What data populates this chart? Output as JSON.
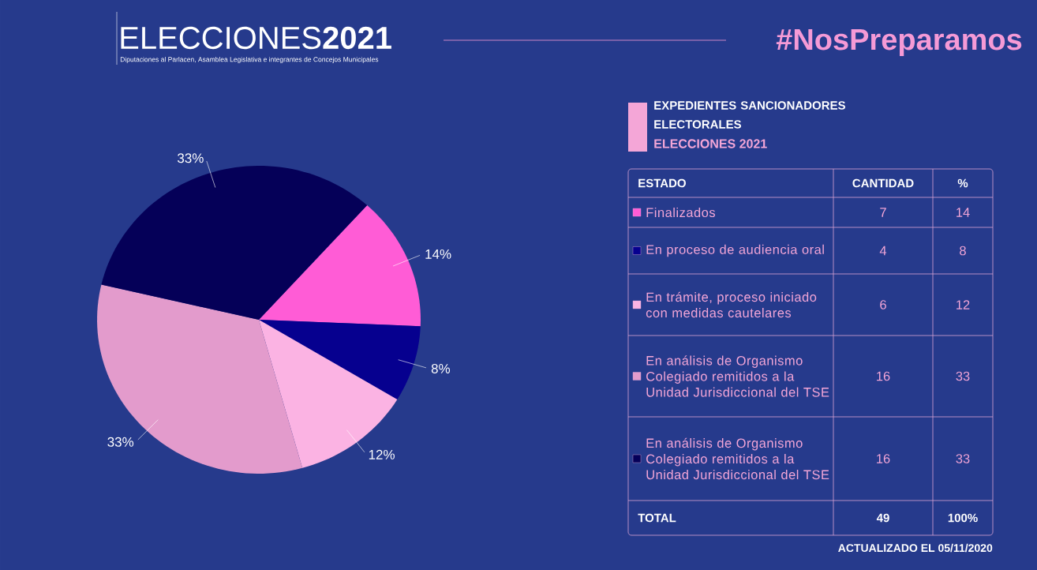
{
  "chart_data": {
    "type": "pie",
    "title": "ELECCIONES**2021**",
    "subtitle": "Diputaciones al Parlacen, Asamblea Legislativa e integrantes de Concejos Municipales",
    "categories": [
      "Finalizados",
      "En proceso de audiencia oral",
      "En trámite, proceso iniciado con medidas cautelares",
      "En análisis de Organismo Colegiado remitidos a la Unidad Jurisdiccional del TSE",
      "En análisis de Organismo Colegiado remitidos a la Unidad Jurisdiccional del TSE"
    ],
    "values": [
      14,
      8,
      12,
      33,
      33
    ],
    "colors": [
      "#ff5cd6",
      "#06008f",
      "#fbb3e3",
      "#e39bcc",
      "#050058"
    ],
    "value_labels": [
      "14%",
      "8%",
      "12%",
      "33%",
      "33%"
    ],
    "legend": "right",
    "annotations": [
      "EXPEDIENTES SANCIONADORES ELECTORALES",
      "ELECCIONES 2021",
      "#NosPreparamos",
      "ESTADO",
      "CANTIDAD",
      "%",
      "7",
      "4",
      "6",
      "16",
      "16",
      "TOTAL",
      "49",
      "100%",
      "ACTUALIZADO EL 05/11/2020",
      "14",
      "8",
      "12",
      "33",
      "33"
    ]
  }
}
